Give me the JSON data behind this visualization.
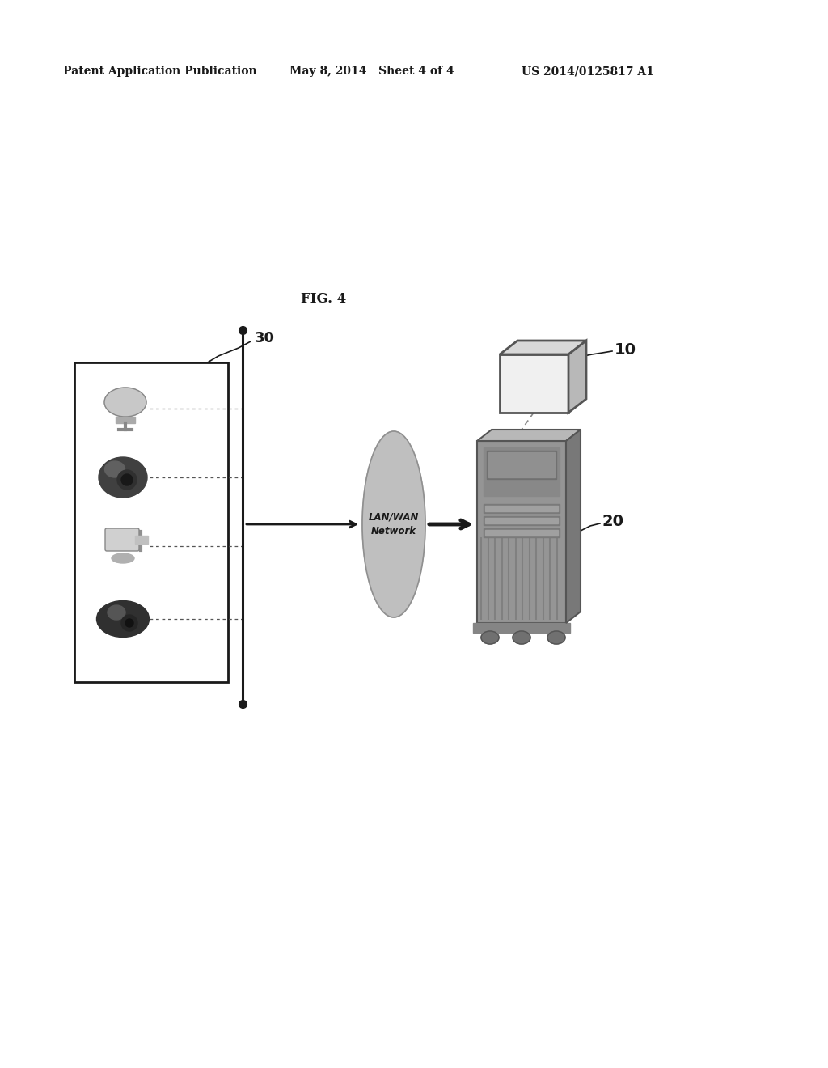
{
  "header_left": "Patent Application Publication",
  "header_mid": "May 8, 2014   Sheet 4 of 4",
  "header_right": "US 2014/0125817 A1",
  "fig_label": "FIG. 4",
  "label_30": "30",
  "label_10": "10",
  "label_20": "20",
  "network_label": "LAN/WAN\nNetwork",
  "bg_color": "#ffffff"
}
